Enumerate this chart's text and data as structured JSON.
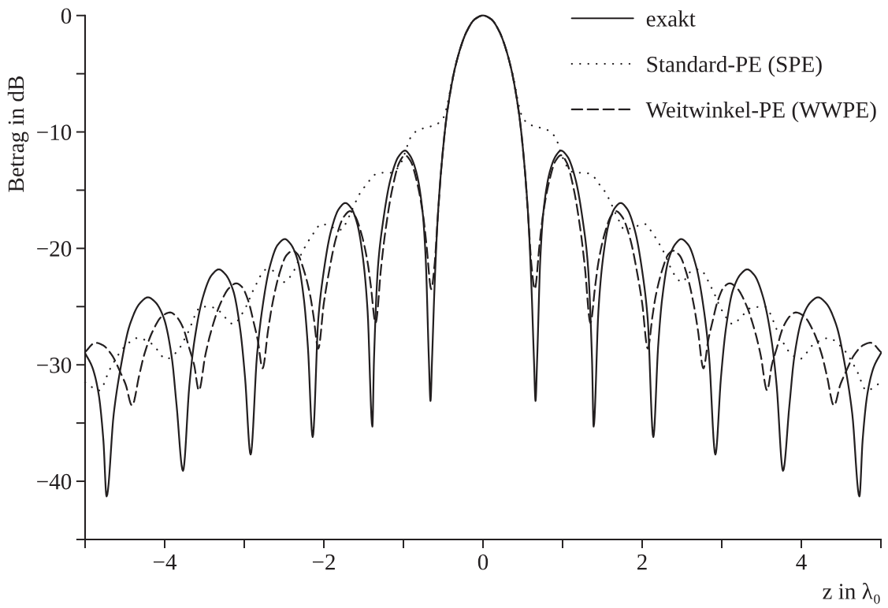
{
  "chart_data": {
    "type": "line",
    "xlabel": "z in λ₀",
    "ylabel": "Betrag in dB",
    "xlim": [
      -5,
      5
    ],
    "ylim": [
      -45,
      0
    ],
    "xticks": [
      {
        "value": -5,
        "label": null
      },
      {
        "value": -4,
        "label": "−4"
      },
      {
        "value": -3,
        "label": null
      },
      {
        "value": -2,
        "label": "−2"
      },
      {
        "value": -1,
        "label": null
      },
      0,
      {
        "value": 1,
        "label": null
      },
      2,
      {
        "value": 3,
        "label": null
      },
      4,
      {
        "value": 5,
        "label": null
      }
    ],
    "yticks": [
      0,
      {
        "value": -5,
        "label": null
      },
      {
        "value": -10,
        "label": "−10"
      },
      {
        "value": -15,
        "label": null
      },
      {
        "value": -20,
        "label": "−20"
      },
      {
        "value": -25,
        "label": null
      },
      {
        "value": -30,
        "label": "−30"
      },
      {
        "value": -35,
        "label": null
      },
      {
        "value": -40,
        "label": "−40"
      },
      {
        "value": -45,
        "label": null
      }
    ],
    "legend": "top right",
    "series": [
      {
        "name": "exakt",
        "color": "#231f20",
        "line_style": "solid",
        "x": [
          -5,
          -4.91,
          -4.83,
          -4.77,
          -4.73,
          -4.64,
          -4.56,
          -4.44,
          -4.31,
          -4.21,
          -4.12,
          -4.01,
          -3.91,
          -3.85,
          -3.77,
          -3.69,
          -3.63,
          -3.52,
          -3.41,
          -3.32,
          -3.24,
          -3.14,
          -3.05,
          -2.99,
          -2.92,
          -2.84,
          -2.78,
          -2.68,
          -2.58,
          -2.49,
          -2.42,
          -2.33,
          -2.25,
          -2.2,
          -2.14,
          -2.07,
          -2.01,
          -1.91,
          -1.81,
          -1.73,
          -1.66,
          -1.58,
          -1.5,
          -1.45,
          -1.39,
          -1.37,
          -1.32,
          -1.26,
          -1.16,
          -1.06,
          -0.98,
          -0.92,
          -0.84,
          -0.76,
          -0.72,
          -0.68,
          -0.66,
          -0.64,
          -0.61,
          -0.57,
          -0.52,
          -0.45,
          -0.33,
          -0.2,
          -0.1,
          0,
          0.1,
          0.2,
          0.33,
          0.45,
          0.52,
          0.57,
          0.61,
          0.64,
          0.66,
          0.68,
          0.72,
          0.76,
          0.84,
          0.92,
          0.98,
          1.06,
          1.16,
          1.26,
          1.32,
          1.37,
          1.39,
          1.45,
          1.5,
          1.58,
          1.66,
          1.73,
          1.81,
          1.91,
          2.01,
          2.07,
          2.14,
          2.2,
          2.25,
          2.33,
          2.42,
          2.49,
          2.58,
          2.68,
          2.78,
          2.84,
          2.92,
          2.99,
          3.05,
          3.14,
          3.24,
          3.32,
          3.41,
          3.52,
          3.63,
          3.69,
          3.77,
          3.85,
          3.91,
          4.01,
          4.12,
          4.21,
          4.31,
          4.44,
          4.56,
          4.64,
          4.73,
          4.77,
          4.83,
          4.91,
          5
        ],
        "values": [
          -29,
          -30.2,
          -32.5,
          -36.5,
          -41.3,
          -34.2,
          -30.5,
          -26.6,
          -24.7,
          -24.2,
          -24.6,
          -26,
          -29.4,
          -33.5,
          -39.1,
          -31.8,
          -28.1,
          -24.2,
          -22.3,
          -21.8,
          -22.2,
          -23.6,
          -27,
          -31.1,
          -37.7,
          -29.2,
          -25.5,
          -21.6,
          -19.7,
          -19.2,
          -19.6,
          -21,
          -24.4,
          -28.5,
          -36.2,
          -26.1,
          -22.4,
          -18.5,
          -16.6,
          -16.1,
          -16.5,
          -17.9,
          -21.3,
          -25.4,
          -35.3,
          -29.6,
          -21.6,
          -17.9,
          -14,
          -12.1,
          -11.6,
          -12,
          -13.4,
          -16.8,
          -20.9,
          -29.6,
          -33.1,
          -29.5,
          -23.5,
          -17.5,
          -12.8,
          -8.3,
          -3.9,
          -1.3,
          -0.3,
          0,
          -0.3,
          -1.3,
          -3.9,
          -8.3,
          -12.8,
          -17.5,
          -23.5,
          -29.5,
          -33.1,
          -29.6,
          -20.9,
          -16.8,
          -13.4,
          -12,
          -11.6,
          -12.1,
          -14,
          -17.9,
          -21.6,
          -29.6,
          -35.3,
          -25.4,
          -21.3,
          -17.9,
          -16.5,
          -16.1,
          -16.6,
          -18.5,
          -22.4,
          -26.1,
          -36.2,
          -28.5,
          -24.4,
          -21,
          -19.6,
          -19.2,
          -19.7,
          -21.6,
          -25.5,
          -29.2,
          -37.7,
          -31.1,
          -27,
          -23.6,
          -22.2,
          -21.8,
          -22.3,
          -24.2,
          -28.1,
          -31.8,
          -39.1,
          -33.5,
          -29.4,
          -26,
          -24.6,
          -24.2,
          -24.7,
          -26.6,
          -30.5,
          -34.2,
          -41.3,
          -36.5,
          -32.5,
          -30.2,
          -29
        ]
      },
      {
        "name": "Standard-PE (SPE)",
        "color": "#231f20",
        "line_style": "dotted",
        "x": [
          -5,
          -4.82,
          -4.69,
          -4.51,
          -4.34,
          -4.16,
          -3.98,
          -3.85,
          -3.72,
          -3.54,
          -3.37,
          -3.23,
          -3.14,
          -3,
          -2.88,
          -2.72,
          -2.61,
          -2.5,
          -2.4,
          -2.27,
          -2.13,
          -2.03,
          -1.89,
          -1.78,
          -1.7,
          -1.62,
          -1.54,
          -1.45,
          -1.37,
          -1.27,
          -1.15,
          -1.05,
          -0.97,
          -0.92,
          -0.83,
          -0.7,
          -0.6,
          -0.5,
          -0.44,
          -0.4,
          -0.33,
          -0.2,
          -0.1,
          0,
          0.1,
          0.2,
          0.33,
          0.4,
          0.44,
          0.5,
          0.6,
          0.7,
          0.83,
          0.92,
          0.97,
          1.05,
          1.15,
          1.27,
          1.37,
          1.45,
          1.54,
          1.62,
          1.7,
          1.78,
          1.89,
          2.03,
          2.13,
          2.27,
          2.4,
          2.5,
          2.61,
          2.72,
          2.88,
          3,
          3.14,
          3.23,
          3.37,
          3.54,
          3.72,
          3.85,
          3.98,
          4.16,
          4.34,
          4.51,
          4.69,
          4.82,
          5
        ],
        "values": [
          -31.5,
          -32.2,
          -30.4,
          -28.5,
          -27.7,
          -28.2,
          -29.5,
          -28.9,
          -27.4,
          -25,
          -25.1,
          -26,
          -26.5,
          -25.3,
          -23.5,
          -21.8,
          -22,
          -22.9,
          -22.2,
          -20.3,
          -18.7,
          -17.9,
          -18.2,
          -18.4,
          -17.5,
          -16.3,
          -15.2,
          -14.4,
          -13.7,
          -13.5,
          -13.5,
          -12.9,
          -11.6,
          -10.6,
          -9.9,
          -9.6,
          -9.4,
          -8.8,
          -7.4,
          -5.9,
          -3.9,
          -1.3,
          -0.3,
          0,
          -0.3,
          -1.3,
          -3.9,
          -5.9,
          -7.4,
          -8.8,
          -9.4,
          -9.6,
          -9.9,
          -10.6,
          -11.6,
          -12.9,
          -13.5,
          -13.5,
          -13.7,
          -14.4,
          -15.2,
          -16.3,
          -17.5,
          -18.4,
          -18.2,
          -17.9,
          -18.7,
          -20.3,
          -22.2,
          -22.9,
          -22,
          -21.8,
          -23.5,
          -25.3,
          -26.5,
          -26,
          -25.1,
          -25,
          -27.4,
          -28.9,
          -29.5,
          -28.2,
          -27.7,
          -28.5,
          -30.4,
          -32.2,
          -31.5
        ]
      },
      {
        "name": "Weitwinkel-PE (WWPE)",
        "color": "#231f20",
        "line_style": "dashed",
        "x": [
          -5,
          -4.87,
          -4.78,
          -4.66,
          -4.56,
          -4.49,
          -4.41,
          -4.32,
          -4.26,
          -4.15,
          -4.03,
          -3.93,
          -3.86,
          -3.77,
          -3.69,
          -3.63,
          -3.57,
          -3.49,
          -3.42,
          -3.31,
          -3.19,
          -3.1,
          -3.03,
          -2.95,
          -2.88,
          -2.83,
          -2.77,
          -2.7,
          -2.65,
          -2.56,
          -2.47,
          -2.39,
          -2.33,
          -2.25,
          -2.17,
          -2.13,
          -2.07,
          -2,
          -1.94,
          -1.85,
          -1.75,
          -1.67,
          -1.61,
          -1.53,
          -1.45,
          -1.41,
          -1.35,
          -1.28,
          -1.23,
          -1.14,
          -1.05,
          -0.98,
          -0.91,
          -0.83,
          -0.75,
          -0.71,
          -0.65,
          -0.61,
          -0.57,
          -0.52,
          -0.45,
          -0.33,
          -0.2,
          -0.1,
          0,
          0.1,
          0.2,
          0.33,
          0.45,
          0.52,
          0.57,
          0.61,
          0.65,
          0.71,
          0.75,
          0.83,
          0.91,
          0.98,
          1.05,
          1.14,
          1.23,
          1.28,
          1.35,
          1.41,
          1.45,
          1.53,
          1.61,
          1.67,
          1.75,
          1.85,
          1.94,
          2,
          2.07,
          2.13,
          2.17,
          2.25,
          2.33,
          2.39,
          2.47,
          2.56,
          2.65,
          2.7,
          2.77,
          2.83,
          2.88,
          2.95,
          3.03,
          3.1,
          3.19,
          3.31,
          3.42,
          3.49,
          3.57,
          3.63,
          3.69,
          3.77,
          3.86,
          3.93,
          4.03,
          4.15,
          4.26,
          4.32,
          4.41,
          4.49,
          4.56,
          4.66,
          4.78,
          4.87,
          5
        ],
        "values": [
          -28.9,
          -28.1,
          -28.3,
          -29.2,
          -30.6,
          -31.7,
          -33.5,
          -30.9,
          -29.2,
          -27.1,
          -25.8,
          -25.5,
          -25.8,
          -26.8,
          -28.6,
          -30,
          -32.2,
          -29.2,
          -27.2,
          -24.9,
          -23.4,
          -23,
          -23.3,
          -24.5,
          -26.4,
          -27.9,
          -30.3,
          -27,
          -24.9,
          -22.2,
          -20.6,
          -20.2,
          -20.5,
          -21.9,
          -24.1,
          -25.8,
          -28.6,
          -24.7,
          -22.2,
          -19.2,
          -17.3,
          -16.8,
          -17.2,
          -18.7,
          -21.2,
          -23.2,
          -26.4,
          -21.6,
          -18.7,
          -14.9,
          -12.6,
          -12,
          -12.5,
          -14.3,
          -17.3,
          -19.7,
          -23.5,
          -21.5,
          -17.5,
          -12.8,
          -8.3,
          -3.9,
          -1.3,
          -0.3,
          0,
          -0.3,
          -1.3,
          -3.9,
          -8.3,
          -12.8,
          -17.5,
          -21.5,
          -23.5,
          -19.7,
          -17.3,
          -14.3,
          -12.5,
          -12,
          -12.6,
          -14.9,
          -18.7,
          -21.6,
          -26.4,
          -23.2,
          -21.2,
          -18.7,
          -17.2,
          -16.8,
          -17.3,
          -19.2,
          -22.2,
          -24.7,
          -28.6,
          -25.8,
          -24.1,
          -21.9,
          -20.5,
          -20.2,
          -20.6,
          -22.2,
          -24.9,
          -27,
          -30.3,
          -27.9,
          -26.4,
          -24.5,
          -23.3,
          -23,
          -23.4,
          -24.9,
          -27.2,
          -29.2,
          -32.2,
          -30,
          -28.6,
          -26.8,
          -25.8,
          -25.5,
          -25.8,
          -27.1,
          -29.2,
          -30.9,
          -33.5,
          -31.7,
          -30.6,
          -29.2,
          -28.3,
          -28.1,
          -28.9
        ]
      }
    ]
  }
}
